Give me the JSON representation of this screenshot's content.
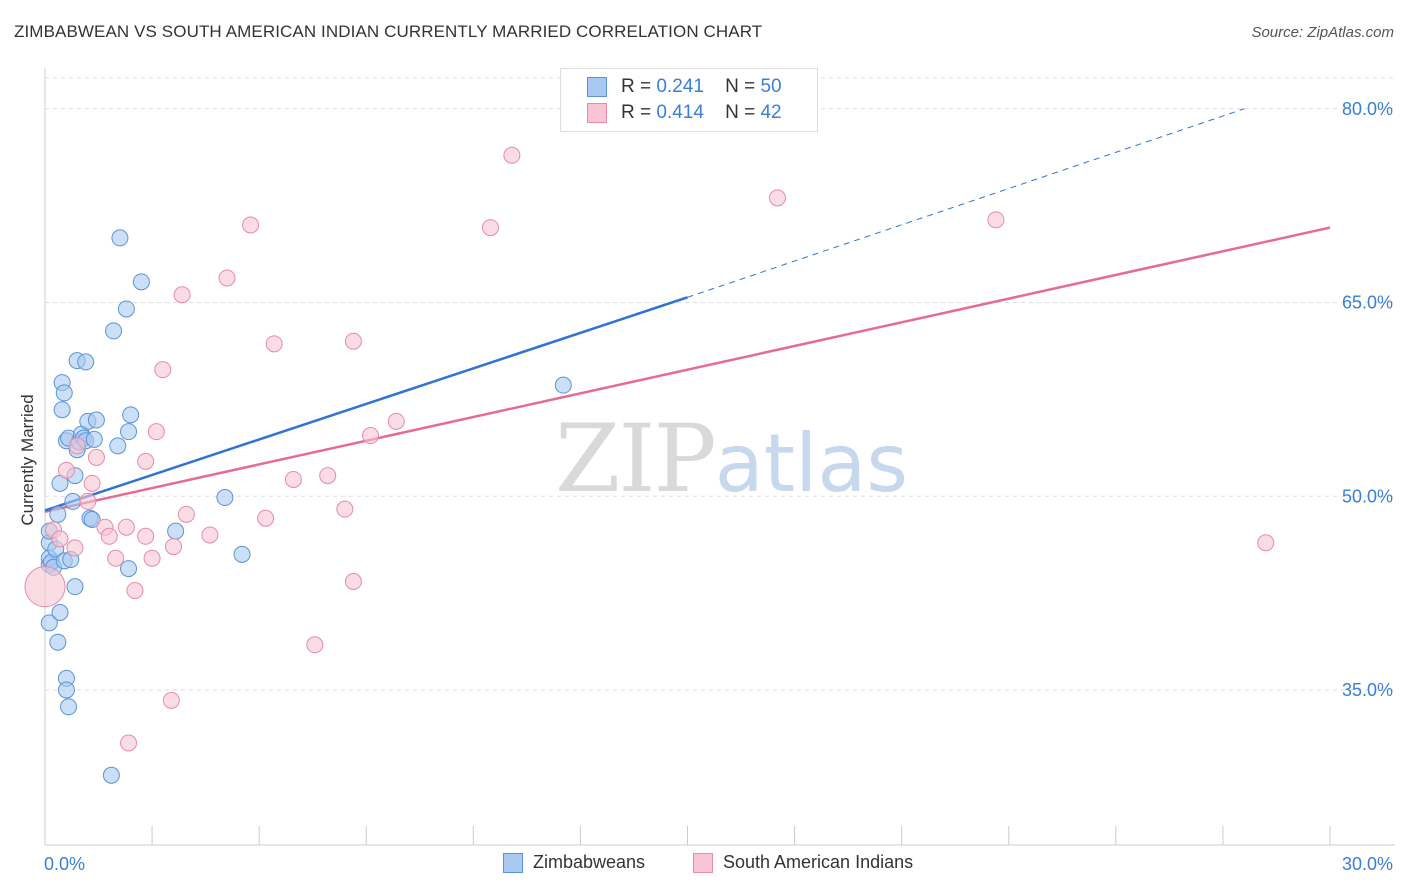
{
  "title": "ZIMBABWEAN VS SOUTH AMERICAN INDIAN CURRENTLY MARRIED CORRELATION CHART",
  "source": "Source: ZipAtlas.com",
  "watermark": {
    "zip": "ZIP",
    "atlas": "atlas"
  },
  "legend": {
    "series": [
      {
        "r_label": "R =",
        "r_value": "0.241",
        "n_label": "N =",
        "n_value": "50"
      },
      {
        "r_label": "R =",
        "r_value": "0.414",
        "n_label": "N =",
        "n_value": "42"
      }
    ]
  },
  "bottom_legend": [
    "Zimbabweans",
    "South American Indians"
  ],
  "colors": {
    "blue_fill": "#a9c9f0",
    "blue_stroke": "#5b93d6",
    "blue_line": "#2f74d0",
    "pink_fill": "#f7c4d3",
    "pink_stroke": "#e98aa8",
    "pink_line": "#e56b93",
    "grid": "#dddddd",
    "axis_text": "#3a7fd5"
  },
  "chart_data": {
    "type": "scatter",
    "title": "ZIMBABWEAN VS SOUTH AMERICAN INDIAN CURRENTLY MARRIED CORRELATION CHART",
    "xlabel": "",
    "ylabel": "Currently Married",
    "xlim": [
      0,
      30
    ],
    "ylim": [
      23,
      83
    ],
    "x_tick_labels": [
      "0.0%",
      "30.0%"
    ],
    "y_ticks": [
      35,
      50,
      65,
      80
    ],
    "y_tick_labels": [
      "35.0%",
      "50.0%",
      "65.0%",
      "80.0%"
    ],
    "grid": true,
    "legend_position": "top-center",
    "series": [
      {
        "name": "Zimbabweans",
        "r": 0.241,
        "n": 50,
        "trend": {
          "x0": 0.0,
          "y0": 48.9,
          "x1": 15.0,
          "y1": 65.4,
          "dash_to_x": 28.0,
          "dash_to_y": 80.0
        },
        "points": [
          [
            0.1,
            40.2
          ],
          [
            0.1,
            44.7
          ],
          [
            0.1,
            45.2
          ],
          [
            0.1,
            46.4
          ],
          [
            0.1,
            47.3
          ],
          [
            0.15,
            44.9
          ],
          [
            0.2,
            44.5
          ],
          [
            0.25,
            45.9
          ],
          [
            0.3,
            48.6
          ],
          [
            0.3,
            38.7
          ],
          [
            0.35,
            51.0
          ],
          [
            0.35,
            41.0
          ],
          [
            0.4,
            56.7
          ],
          [
            0.4,
            58.8
          ],
          [
            0.45,
            58.0
          ],
          [
            0.45,
            45.0
          ],
          [
            0.5,
            35.9
          ],
          [
            0.5,
            35.0
          ],
          [
            0.55,
            33.7
          ],
          [
            0.5,
            54.3
          ],
          [
            0.55,
            54.5
          ],
          [
            0.6,
            45.1
          ],
          [
            0.65,
            49.6
          ],
          [
            0.7,
            51.6
          ],
          [
            0.7,
            43.0
          ],
          [
            0.75,
            53.6
          ],
          [
            0.75,
            60.5
          ],
          [
            0.8,
            54.2
          ],
          [
            0.85,
            54.8
          ],
          [
            0.9,
            54.5
          ],
          [
            0.95,
            60.4
          ],
          [
            0.95,
            54.3
          ],
          [
            1.0,
            55.8
          ],
          [
            1.05,
            48.3
          ],
          [
            1.1,
            48.2
          ],
          [
            1.15,
            54.4
          ],
          [
            1.2,
            55.9
          ],
          [
            1.55,
            28.4
          ],
          [
            1.6,
            62.8
          ],
          [
            1.7,
            53.9
          ],
          [
            1.75,
            70.0
          ],
          [
            1.9,
            64.5
          ],
          [
            1.95,
            44.4
          ],
          [
            1.95,
            55.0
          ],
          [
            2.0,
            56.3
          ],
          [
            2.25,
            66.6
          ],
          [
            3.05,
            47.3
          ],
          [
            4.2,
            49.9
          ],
          [
            4.6,
            45.5
          ],
          [
            12.1,
            58.6
          ]
        ]
      },
      {
        "name": "South American Indians",
        "r": 0.414,
        "n": 42,
        "trend": {
          "x0": 0.0,
          "y0": 48.8,
          "x1": 30.0,
          "y1": 70.8
        },
        "points": [
          [
            0.0,
            43.0
          ],
          [
            0.2,
            47.4
          ],
          [
            0.35,
            46.7
          ],
          [
            0.5,
            52.0
          ],
          [
            0.7,
            46.0
          ],
          [
            0.75,
            53.9
          ],
          [
            1.0,
            49.6
          ],
          [
            1.1,
            51.0
          ],
          [
            1.2,
            53.0
          ],
          [
            1.4,
            47.6
          ],
          [
            1.5,
            46.9
          ],
          [
            1.65,
            45.2
          ],
          [
            1.9,
            47.6
          ],
          [
            1.95,
            30.9
          ],
          [
            2.1,
            42.7
          ],
          [
            2.35,
            46.9
          ],
          [
            2.35,
            52.7
          ],
          [
            2.5,
            45.2
          ],
          [
            2.6,
            55.0
          ],
          [
            2.75,
            59.8
          ],
          [
            2.95,
            34.2
          ],
          [
            3.0,
            46.1
          ],
          [
            3.2,
            65.6
          ],
          [
            3.3,
            48.6
          ],
          [
            3.85,
            47.0
          ],
          [
            4.25,
            66.9
          ],
          [
            4.8,
            71.0
          ],
          [
            5.15,
            48.3
          ],
          [
            5.35,
            61.8
          ],
          [
            5.8,
            51.3
          ],
          [
            6.3,
            38.5
          ],
          [
            6.6,
            51.6
          ],
          [
            7.0,
            49.0
          ],
          [
            7.2,
            43.4
          ],
          [
            7.2,
            62.0
          ],
          [
            7.6,
            54.7
          ],
          [
            8.2,
            55.8
          ],
          [
            10.4,
            70.8
          ],
          [
            10.9,
            76.4
          ],
          [
            17.1,
            73.1
          ],
          [
            22.2,
            71.4
          ],
          [
            28.5,
            46.4
          ]
        ]
      }
    ]
  }
}
